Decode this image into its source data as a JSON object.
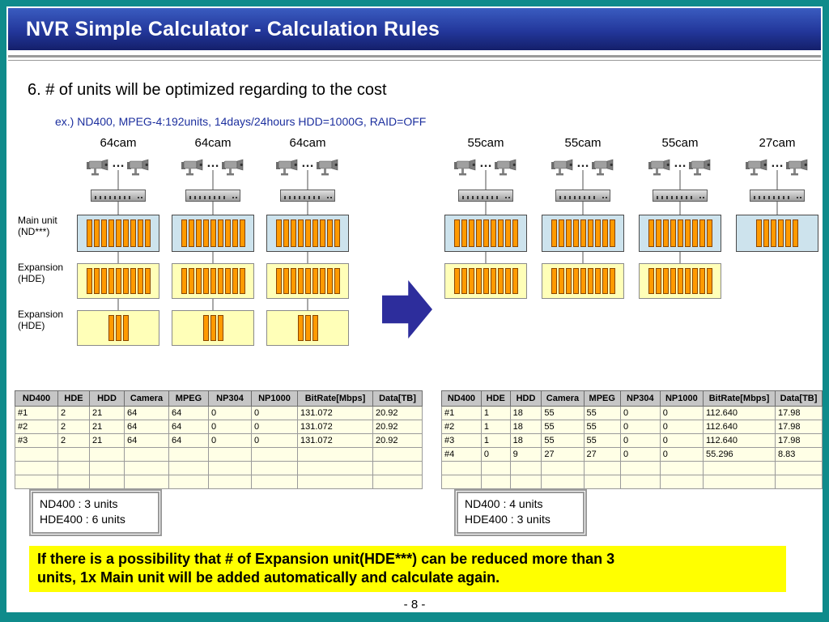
{
  "page": {
    "title": "NVR Simple Calculator - Calculation Rules",
    "page_number": "- 8 -"
  },
  "content": {
    "heading": "6. # of units will be optimized regarding to the cost",
    "example_line": "ex.) ND400, MPEG-4:192units, 14days/24hours HDD=1000G, RAID=OFF",
    "note_lines": [
      "If there is a possibility that # of Expansion unit(HDE***) can be reduced more than 3",
      "units, 1x Main unit will be added automatically and calculate again."
    ]
  },
  "diagram": {
    "left": {
      "row_labels": [
        "Main unit\n(ND***)",
        "Expansion\n(HDE)",
        "Expansion\n(HDE)"
      ],
      "columns": [
        {
          "cam_label": "64cam",
          "units": [
            {
              "type": "main",
              "slots": 9
            },
            {
              "type": "exp",
              "slots": 9
            },
            {
              "type": "exp",
              "slots": 3
            }
          ]
        },
        {
          "cam_label": "64cam",
          "units": [
            {
              "type": "main",
              "slots": 9
            },
            {
              "type": "exp",
              "slots": 9
            },
            {
              "type": "exp",
              "slots": 3
            }
          ]
        },
        {
          "cam_label": "64cam",
          "units": [
            {
              "type": "main",
              "slots": 9
            },
            {
              "type": "exp",
              "slots": 9
            },
            {
              "type": "exp",
              "slots": 3
            }
          ]
        }
      ]
    },
    "right": {
      "columns": [
        {
          "cam_label": "55cam",
          "units": [
            {
              "type": "main",
              "slots": 9
            },
            {
              "type": "exp",
              "slots": 9
            }
          ]
        },
        {
          "cam_label": "55cam",
          "units": [
            {
              "type": "main",
              "slots": 9
            },
            {
              "type": "exp",
              "slots": 9
            }
          ]
        },
        {
          "cam_label": "55cam",
          "units": [
            {
              "type": "main",
              "slots": 9
            },
            {
              "type": "exp",
              "slots": 9
            }
          ]
        },
        {
          "cam_label": "27cam",
          "units": [
            {
              "type": "main",
              "slots": 6
            }
          ]
        }
      ]
    }
  },
  "tables": {
    "headers": [
      "ND400",
      "HDE",
      "HDD",
      "Camera",
      "MPEG",
      "NP304",
      "NP1000",
      "BitRate[Mbps]",
      "Data[TB]"
    ],
    "left": {
      "rows": [
        [
          "#1",
          "2",
          "21",
          "64",
          "64",
          "0",
          "0",
          "131.072",
          "20.92"
        ],
        [
          "#2",
          "2",
          "21",
          "64",
          "64",
          "0",
          "0",
          "131.072",
          "20.92"
        ],
        [
          "#3",
          "2",
          "21",
          "64",
          "64",
          "0",
          "0",
          "131.072",
          "20.92"
        ],
        [
          "",
          "",
          "",
          "",
          "",
          "",
          "",
          "",
          ""
        ],
        [
          "",
          "",
          "",
          "",
          "",
          "",
          "",
          "",
          ""
        ],
        [
          "",
          "",
          "",
          "",
          "",
          "",
          "",
          "",
          ""
        ]
      ],
      "summary": [
        "ND400 : 3 units",
        "HDE400 : 6 units"
      ]
    },
    "right": {
      "rows": [
        [
          "#1",
          "1",
          "18",
          "55",
          "55",
          "0",
          "0",
          "112.640",
          "17.98"
        ],
        [
          "#2",
          "1",
          "18",
          "55",
          "55",
          "0",
          "0",
          "112.640",
          "17.98"
        ],
        [
          "#3",
          "1",
          "18",
          "55",
          "55",
          "0",
          "0",
          "112.640",
          "17.98"
        ],
        [
          "#4",
          "0",
          "9",
          "27",
          "27",
          "0",
          "0",
          "55.296",
          "8.83"
        ],
        [
          "",
          "",
          "",
          "",
          "",
          "",
          "",
          "",
          ""
        ],
        [
          "",
          "",
          "",
          "",
          "",
          "",
          "",
          "",
          ""
        ]
      ],
      "summary": [
        "ND400 : 4 units",
        "HDE400 : 3 units"
      ]
    }
  },
  "colors": {
    "background_teal": "#0f8b8b",
    "header_blue": "#23379b",
    "example_text_blue": "#1c2f9e",
    "main_unit_fill": "#cde3ed",
    "expansion_fill": "#ffffb8",
    "slot_orange": "#ff9a00",
    "note_yellow": "#ffff00",
    "table_header_gray": "#c6c6c6",
    "table_row_cream": "#ffffe6",
    "arrow_blue": "#2d2d9c"
  }
}
